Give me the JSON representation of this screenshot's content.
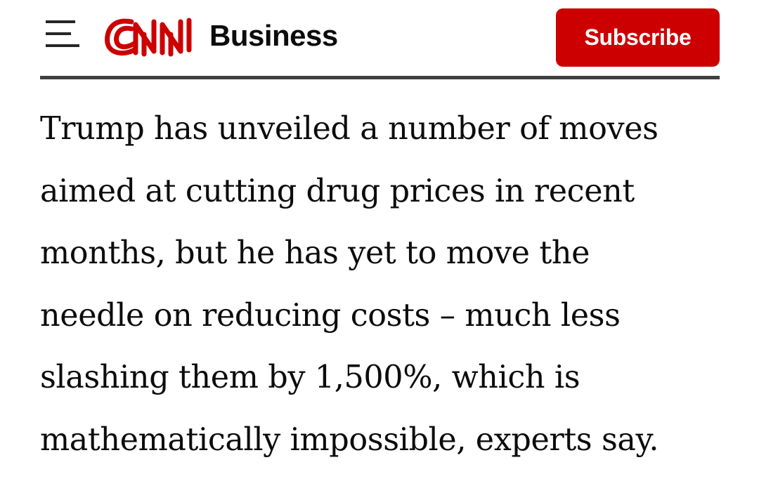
{
  "header": {
    "logo_text": "CNN",
    "section": "Business",
    "subscribe_label": "Subscribe",
    "menu_icon": "hamburger-menu-icon"
  },
  "colors": {
    "brand_red": "#cc0000",
    "text": "#0c0c0c",
    "divider": "#404040"
  },
  "article": {
    "lines": [
      "Trump has unveiled a number of moves",
      "aimed at cutting drug prices in recent",
      "months, but he has yet to move the",
      "needle on reducing costs – much less",
      "slashing them by 1,500%, which is",
      "mathematically impossible, experts say."
    ]
  }
}
